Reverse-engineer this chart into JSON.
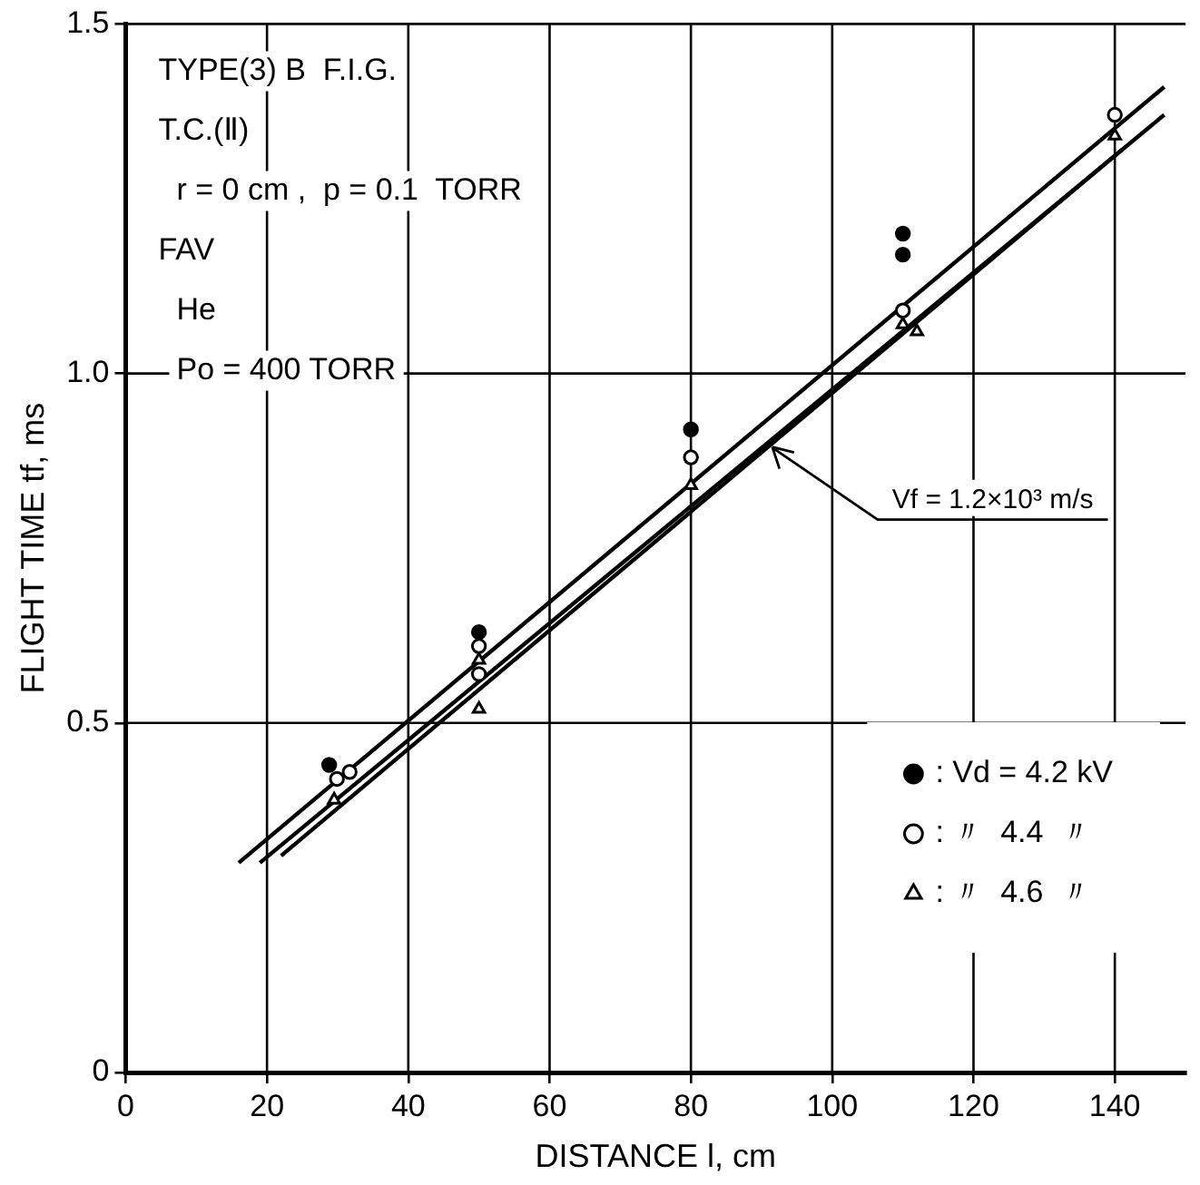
{
  "chart_data": {
    "type": "scatter",
    "xlabel": "DISTANCE l, cm",
    "ylabel": "FLIGHT TIME tf, ms",
    "xlim": [
      0,
      150
    ],
    "xticks": [
      0,
      20,
      40,
      60,
      80,
      100,
      120,
      140
    ],
    "ylim": [
      0,
      1.5
    ],
    "yticks": [
      0,
      0.5,
      {
        "value": 1,
        "label": "1.0"
      },
      1.5
    ],
    "grid": true,
    "legend": "bottom right",
    "series": [
      {
        "name": ": Vd = 4.2 kV",
        "color": "#000000",
        "marker": "circle",
        "x": [
          28.8,
          50,
          80,
          110,
          110
        ],
        "values": [
          0.44,
          0.63,
          0.92,
          1.2,
          1.17
        ]
      },
      {
        "name": ": 〃  4.4  〃",
        "color": "#000000",
        "marker": "circle",
        "x": [
          29.9,
          31.7,
          50,
          50,
          80,
          110,
          140
        ],
        "values": [
          0.42,
          0.43,
          0.61,
          0.57,
          0.88,
          1.09,
          1.37
        ]
      },
      {
        "name": ": 〃  4.6  〃",
        "color": "#000000",
        "marker": "triangle",
        "x": [
          29.5,
          50,
          50,
          80,
          110,
          112,
          140
        ],
        "values": [
          0.39,
          0.59,
          0.52,
          0.84,
          1.07,
          1.06,
          1.34
        ]
      },
      {
        "type": "line",
        "color": "#000000",
        "marker": "none",
        "x": [
          16,
          147
        ],
        "values": [
          0.3,
          1.41
        ]
      },
      {
        "type": "line",
        "color": "#000000",
        "marker": "none",
        "x": [
          19,
          147
        ],
        "values": [
          0.3,
          1.37
        ]
      },
      {
        "type": "line",
        "color": "#000000",
        "marker": "none",
        "x": [
          22,
          141
        ],
        "values": [
          0.31,
          1.32
        ]
      }
    ],
    "annotations": [
      "TYPE(3) B  F.I.G.",
      "T.C.(Ⅱ)",
      "r = 0 cm ,  p = 0.1  TORR",
      "FAV",
      "He",
      "Po = 400 TORR",
      {
        "text": "Vf = 1.2×10³ m/s",
        "x": 91,
        "y": 0.9
      }
    ]
  }
}
